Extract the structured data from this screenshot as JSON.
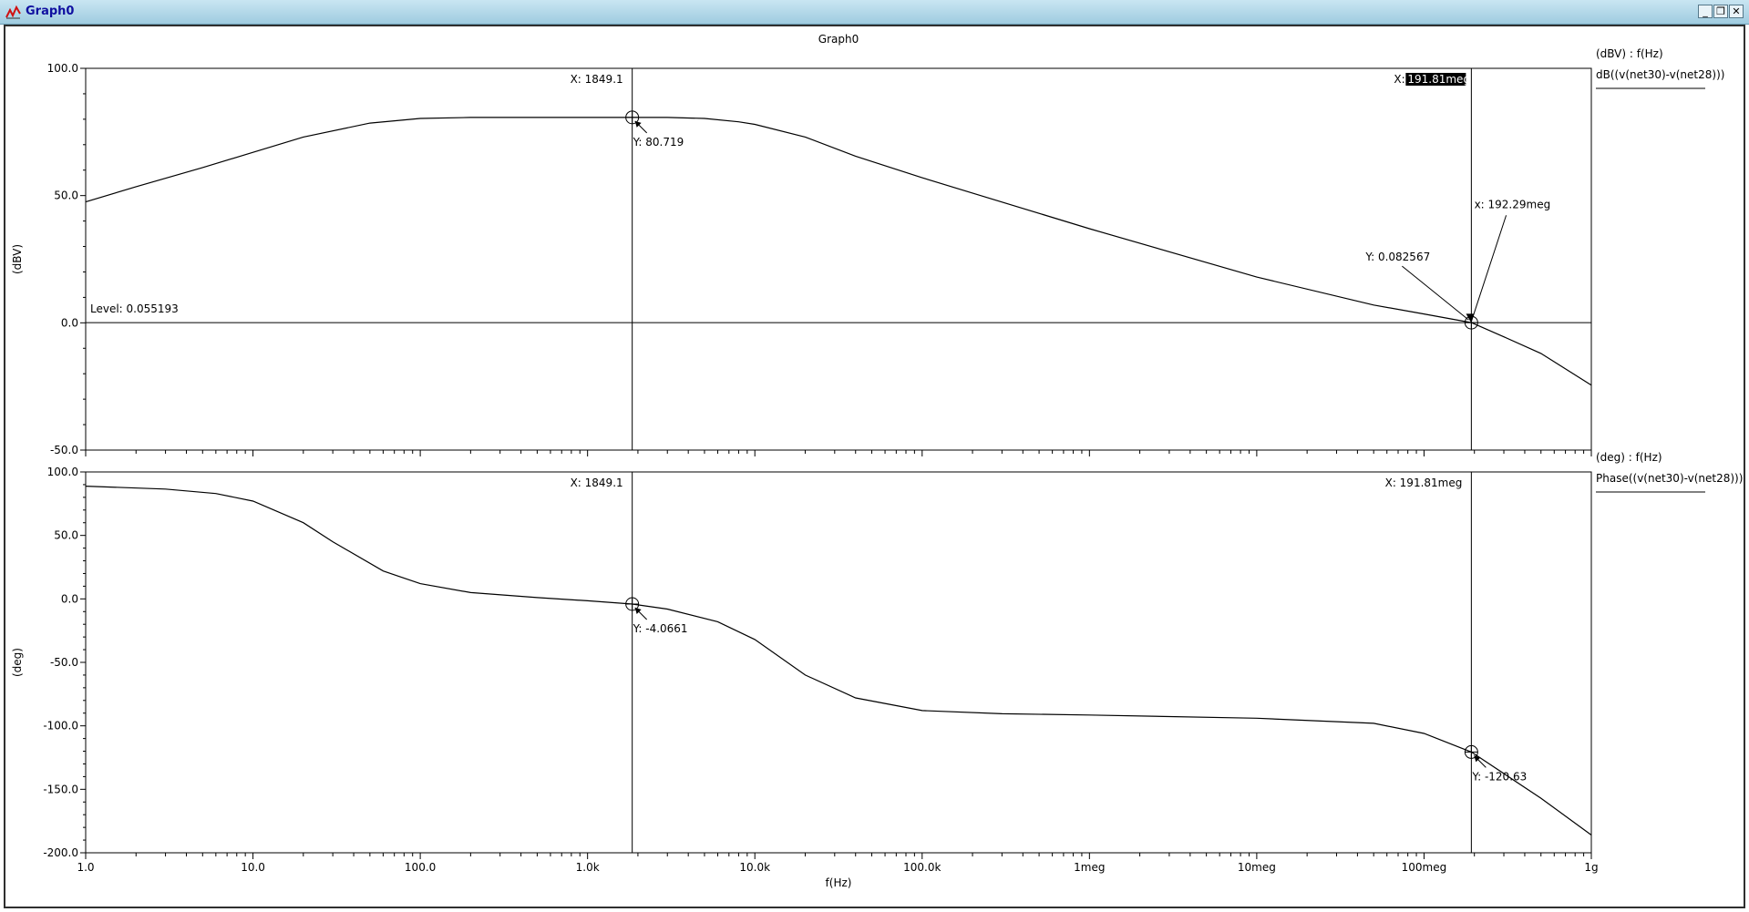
{
  "window": {
    "title": "Graph0",
    "buttons": {
      "minimize": "_",
      "restore": "❐",
      "close": "✕"
    }
  },
  "chart_data": [
    {
      "type": "line",
      "title": "Graph0",
      "xlabel": "f(Hz)",
      "ylabel": "(dBV)",
      "xscale": "log",
      "xlim": [
        1,
        1000000000
      ],
      "ylim": [
        -50,
        100
      ],
      "yticks": [
        "100.0",
        "50.0",
        "0.0",
        "-50.0"
      ],
      "grid": false,
      "legend": {
        "header": "(dBV) : f(Hz)",
        "entries": [
          "dB((v(net30)-v(net28)))"
        ],
        "placement": "right"
      },
      "series": [
        {
          "name": "dB((v(net30)-v(net28)))",
          "x": [
            1,
            2,
            5,
            10,
            20,
            50,
            100,
            200,
            500,
            1000,
            1849.1,
            3000,
            5000,
            8000,
            10000,
            20000,
            40000,
            100000,
            200000,
            1000000,
            10000000,
            50000000,
            100000000,
            191810000,
            300000000,
            500000000,
            1000000000
          ],
          "y": [
            47.5,
            53.5,
            61,
            67,
            73,
            78.5,
            80.3,
            80.7,
            80.7,
            80.7,
            80.719,
            80.7,
            80.3,
            79.0,
            78.0,
            73.0,
            65.5,
            57.0,
            51.0,
            37.0,
            18.0,
            7.0,
            3.5,
            0.082567,
            -5.5,
            -12.0,
            -24.5
          ]
        }
      ],
      "cursors": [
        {
          "x_label": "X: 1849.1",
          "y_label": "Y: 80.719",
          "x": 1849.1,
          "y": 80.719
        },
        {
          "x_label": "X:",
          "x_value": "191.81meg",
          "y_label": "Y: 0.082567",
          "x": 191810000,
          "y": 0.082567
        }
      ],
      "level": {
        "label": "Level: 0.055193",
        "y": 0.055193
      },
      "crossing": {
        "label": "x: 192.29meg",
        "x": 192290000,
        "y": 0
      }
    },
    {
      "type": "line",
      "xlabel": "f(Hz)",
      "ylabel": "(deg)",
      "xscale": "log",
      "xlim": [
        1,
        1000000000
      ],
      "ylim": [
        -200,
        100
      ],
      "yticks": [
        "100.0",
        "50.0",
        "0.0",
        "-50.0",
        "-100.0",
        "-150.0",
        "-200.0"
      ],
      "xticks": [
        "1.0",
        "10.0",
        "100.0",
        "1.0k",
        "10.0k",
        "100.0k",
        "1meg",
        "10meg",
        "100meg",
        "1g"
      ],
      "grid": false,
      "legend": {
        "header": "(deg) : f(Hz)",
        "entries": [
          "Phase((v(net30)-v(net28)))"
        ],
        "placement": "right"
      },
      "series": [
        {
          "name": "Phase((v(net30)-v(net28)))",
          "x": [
            1,
            3,
            6,
            10,
            20,
            30,
            60,
            100,
            200,
            500,
            1000,
            1849.1,
            3000,
            6000,
            10000,
            20000,
            40000,
            100000,
            300000,
            1000000,
            10000000,
            50000000,
            100000000,
            191810000,
            500000000,
            1000000000
          ],
          "y": [
            88.8,
            86.5,
            83,
            77,
            60,
            45,
            22,
            12,
            5,
            1,
            -1.5,
            -4.0661,
            -8,
            -18,
            -32,
            -60,
            -78,
            -88,
            -90.5,
            -91.5,
            -94,
            -98,
            -106,
            -120.63,
            -157,
            -186
          ]
        }
      ],
      "cursors": [
        {
          "x_label": "X: 1849.1",
          "y_label": "Y: -4.0661",
          "x": 1849.1,
          "y": -4.0661
        },
        {
          "x_label": "X: 191.81meg",
          "y_label": "Y: -120.63",
          "x": 191810000,
          "y": -120.63
        }
      ]
    }
  ]
}
